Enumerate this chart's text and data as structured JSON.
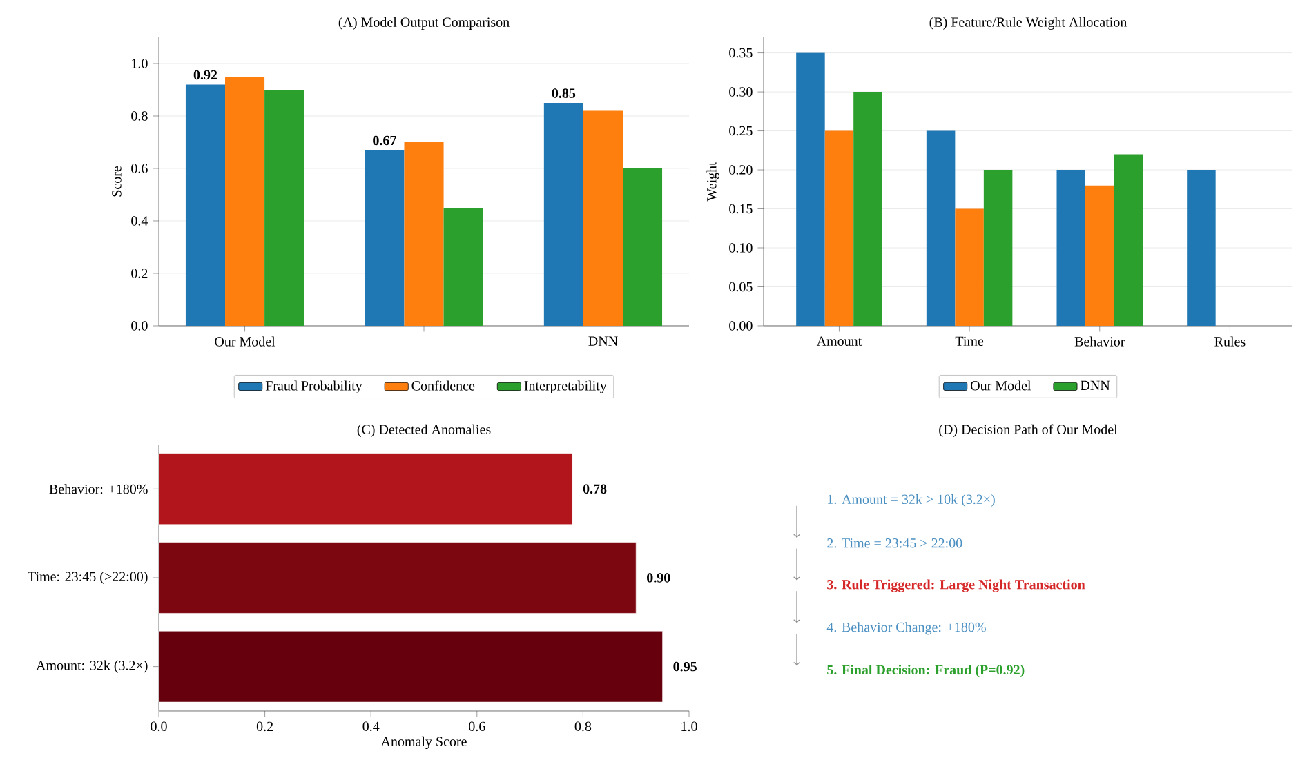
{
  "chart_data": [
    {
      "type": "bar",
      "title": "(A) Model Output Comparison",
      "ylabel": "Score",
      "categories": [
        "Our Model",
        null,
        "DNN"
      ],
      "series": [
        {
          "name": "Fraud Probability",
          "color": "#1f77b4",
          "values": [
            0.92,
            0.67,
            0.85
          ],
          "value_labels": [
            "0.92",
            "0.67",
            "0.85"
          ]
        },
        {
          "name": "Confidence",
          "color": "#ff7f0e",
          "values": [
            0.95,
            0.7,
            0.82
          ]
        },
        {
          "name": "Interpretability",
          "color": "#2ca02c",
          "values": [
            0.9,
            0.45,
            0.6
          ]
        }
      ],
      "ylim": [
        0,
        1.1
      ],
      "yticks": [
        {
          "value": 0,
          "label": "0.0"
        },
        {
          "value": 0.2,
          "label": "0.2"
        },
        {
          "value": 0.4,
          "label": "0.4"
        },
        {
          "value": 0.6,
          "label": "0.6"
        },
        {
          "value": 0.8,
          "label": "0.8"
        },
        {
          "value": 1.0,
          "label": "1.0"
        }
      ],
      "grid": "y",
      "legend": "bottom"
    },
    {
      "type": "bar",
      "title": "(B) Feature/Rule Weight Allocation",
      "ylabel": "Weight",
      "categories": [
        "Amount",
        "Time",
        "Behavior",
        "Rules"
      ],
      "series": [
        {
          "name": "Our Model",
          "color": "#1f77b4",
          "values": [
            0.35,
            0.25,
            0.2,
            0.2
          ]
        },
        {
          "color": "#ff7f0e",
          "values": [
            0.25,
            0.15,
            0.18,
            0
          ]
        },
        {
          "name": "DNN",
          "color": "#2ca02c",
          "values": [
            0.3,
            0.2,
            0.22,
            0
          ]
        }
      ],
      "ylim": [
        0,
        0.37
      ],
      "yticks": [
        {
          "value": 0,
          "label": "0.00"
        },
        {
          "value": 0.05,
          "label": "0.05"
        },
        {
          "value": 0.1,
          "label": "0.10"
        },
        {
          "value": 0.15,
          "label": "0.15"
        },
        {
          "value": 0.2,
          "label": "0.20"
        },
        {
          "value": 0.25,
          "label": "0.25"
        },
        {
          "value": 0.3,
          "label": "0.30"
        },
        {
          "value": 0.35,
          "label": "0.35"
        }
      ],
      "grid": "y",
      "legend": "bottom"
    },
    {
      "type": "bar",
      "orientation": "horizontal",
      "title": "(C) Detected Anomalies",
      "xlabel": "Anomaly Score",
      "categories": [
        "Behavior: +180%",
        "Time: 23:45 (>22:00)",
        "Amount: 32k (3.2×)"
      ],
      "values": [
        0.78,
        0.9,
        0.95
      ],
      "value_labels": [
        "0.78",
        "0.90",
        "0.95"
      ],
      "colors": [
        "#b2151b",
        "#7d0710",
        "#67000d"
      ],
      "xlim": [
        0,
        1
      ],
      "xticks": [
        {
          "value": 0,
          "label": "0.0"
        },
        {
          "value": 0.2,
          "label": "0.2"
        },
        {
          "value": 0.4,
          "label": "0.4"
        },
        {
          "value": 0.6,
          "label": "0.6"
        },
        {
          "value": 0.8,
          "label": "0.8"
        },
        {
          "value": 1.0,
          "label": "1.0"
        }
      ]
    },
    {
      "type": "other",
      "title": "(D) Decision Path of Our Model",
      "annotations": [
        "1. Amount = 32k > 10k (3.2×)",
        "2. Time = 23:45 > 22:00",
        "3. Rule Triggered: Large Night Transaction",
        "4. Behavior Change: +180%",
        "5. Final Decision: Fraud (P=0.92)"
      ]
    }
  ]
}
